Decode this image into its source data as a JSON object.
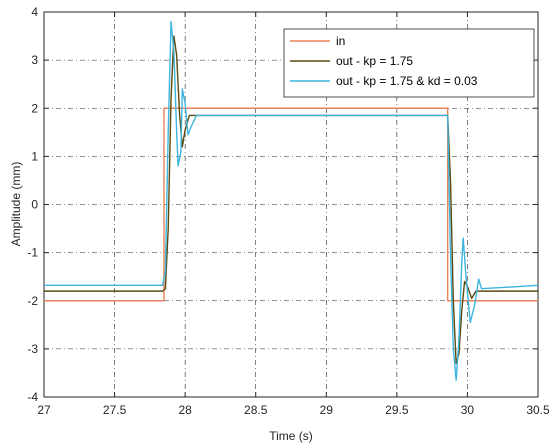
{
  "chart_data": {
    "type": "line",
    "title": "",
    "xlabel": "Time (s)",
    "ylabel": "Amplitude (mm)",
    "xlim": [
      27,
      30.5
    ],
    "ylim": [
      -4,
      4
    ],
    "x_ticks": [
      "27",
      "27.5",
      "28",
      "28.5",
      "29",
      "29.5",
      "30",
      "30.5"
    ],
    "y_ticks": [
      "-4",
      "-3",
      "-2",
      "-1",
      "0",
      "1",
      "2",
      "3",
      "4"
    ],
    "grid": true,
    "legend_position": "top-right",
    "series": [
      {
        "name": "in",
        "color": "#e8825a",
        "points": [
          [
            27.0,
            -2.0
          ],
          [
            27.85,
            -2.0
          ],
          [
            27.85,
            2.0
          ],
          [
            29.86,
            2.0
          ],
          [
            29.86,
            -2.0
          ],
          [
            30.5,
            -2.0
          ]
        ]
      },
      {
        "name": "out - kp = 1.75",
        "color": "#5a4a10",
        "points": [
          [
            27.0,
            -1.8
          ],
          [
            27.84,
            -1.8
          ],
          [
            27.86,
            -1.75
          ],
          [
            27.88,
            -0.5
          ],
          [
            27.9,
            2.2
          ],
          [
            27.92,
            3.5
          ],
          [
            27.94,
            3.1
          ],
          [
            27.96,
            1.9
          ],
          [
            27.98,
            1.2
          ],
          [
            28.0,
            1.55
          ],
          [
            28.03,
            1.85
          ],
          [
            28.08,
            1.85
          ],
          [
            29.86,
            1.85
          ],
          [
            29.88,
            0.5
          ],
          [
            29.9,
            -2.0
          ],
          [
            29.92,
            -3.3
          ],
          [
            29.94,
            -3.1
          ],
          [
            29.96,
            -2.2
          ],
          [
            29.98,
            -1.6
          ],
          [
            30.0,
            -1.7
          ],
          [
            30.03,
            -1.95
          ],
          [
            30.06,
            -1.8
          ],
          [
            30.5,
            -1.8
          ]
        ]
      },
      {
        "name": "out - kp = 1.75 & kd = 0.03",
        "color": "#3db5df",
        "points": [
          [
            27.0,
            -1.68
          ],
          [
            27.84,
            -1.68
          ],
          [
            27.86,
            -1.4
          ],
          [
            27.88,
            1.5
          ],
          [
            27.9,
            3.8
          ],
          [
            27.92,
            3.2
          ],
          [
            27.94,
            1.5
          ],
          [
            27.95,
            0.8
          ],
          [
            27.97,
            1.1
          ],
          [
            27.98,
            2.4
          ],
          [
            28.0,
            2.1
          ],
          [
            28.02,
            1.45
          ],
          [
            28.04,
            1.6
          ],
          [
            28.08,
            1.85
          ],
          [
            29.86,
            1.85
          ],
          [
            29.88,
            -1.0
          ],
          [
            29.9,
            -3.0
          ],
          [
            29.92,
            -3.65
          ],
          [
            29.94,
            -2.8
          ],
          [
            29.96,
            -1.2
          ],
          [
            29.97,
            -0.7
          ],
          [
            29.99,
            -1.5
          ],
          [
            30.02,
            -2.45
          ],
          [
            30.05,
            -2.1
          ],
          [
            30.08,
            -1.55
          ],
          [
            30.1,
            -1.75
          ],
          [
            30.5,
            -1.68
          ]
        ]
      }
    ]
  }
}
